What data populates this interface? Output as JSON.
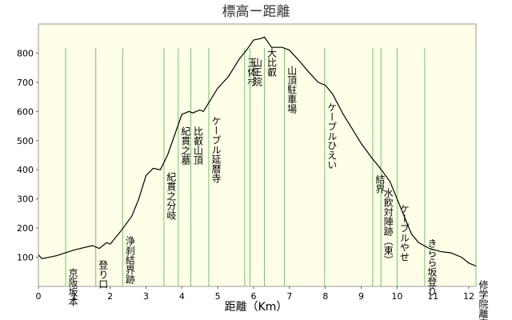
{
  "chart_data": {
    "type": "line",
    "title": "標高ー距離",
    "x_label": "距離（Km）",
    "x": [
      0,
      0.1,
      0.5,
      1.0,
      1.5,
      1.7,
      1.9,
      2.0,
      2.3,
      2.6,
      2.8,
      3.0,
      3.2,
      3.4,
      3.6,
      3.8,
      4.0,
      4.2,
      4.3,
      4.5,
      4.6,
      4.8,
      5.0,
      5.3,
      5.6,
      5.8,
      6.0,
      6.2,
      6.3,
      6.5,
      6.8,
      7.0,
      7.3,
      7.5,
      7.8,
      8.0,
      8.2,
      8.5,
      8.8,
      9.0,
      9.3,
      9.5,
      9.8,
      10.0,
      10.2,
      10.4,
      10.6,
      10.9,
      11.2,
      11.5,
      11.8,
      12.0,
      12.2
    ],
    "values": [
      108,
      95,
      105,
      125,
      140,
      130,
      150,
      145,
      190,
      240,
      300,
      380,
      405,
      400,
      450,
      520,
      590,
      600,
      595,
      605,
      600,
      640,
      680,
      720,
      780,
      810,
      845,
      850,
      855,
      820,
      820,
      810,
      770,
      740,
      700,
      690,
      660,
      590,
      530,
      490,
      440,
      410,
      360,
      300,
      240,
      180,
      150,
      130,
      120,
      115,
      100,
      80,
      70
    ],
    "color": "#000000",
    "marker_color": "#66cc66",
    "xlim": [
      0,
      12.2
    ],
    "xticks": [
      0,
      1,
      2,
      3,
      4,
      5,
      6,
      7,
      8,
      9,
      10,
      11,
      12
    ],
    "ylim": [
      0,
      900
    ],
    "yticks": [
      100,
      200,
      300,
      400,
      500,
      600,
      700,
      800
    ],
    "waypoints": [
      {
        "name": "京阪坂本",
        "x": 0.76
      },
      {
        "name": "登り口",
        "x": 1.6
      },
      {
        "name": "浄刹結界跡",
        "x": 2.35
      },
      {
        "name": "紀貫之分岐",
        "x": 3.5
      },
      {
        "name": "紀貫之墓",
        "x": 3.9
      },
      {
        "name": "比叡山頂",
        "x": 4.25
      },
      {
        "name": "ケーブル延暦寺",
        "x": 4.75
      },
      {
        "name": "玉体杉",
        "x": 5.75
      },
      {
        "name": "山王院",
        "x": 5.9
      },
      {
        "name": "大比叡",
        "x": 6.3
      },
      {
        "name": "山頂駐車場",
        "x": 6.86
      },
      {
        "name": "ケーブルひえい",
        "x": 7.98
      },
      {
        "name": "結界",
        "x": 9.32
      },
      {
        "name": "水飲対陣跡（東）",
        "x": 9.55
      },
      {
        "name": "ケーブルやせ",
        "x": 10.0
      },
      {
        "name": "きらら坂登り",
        "x": 10.77
      },
      {
        "name": "修学院離宮",
        "x": 12.2
      }
    ]
  }
}
